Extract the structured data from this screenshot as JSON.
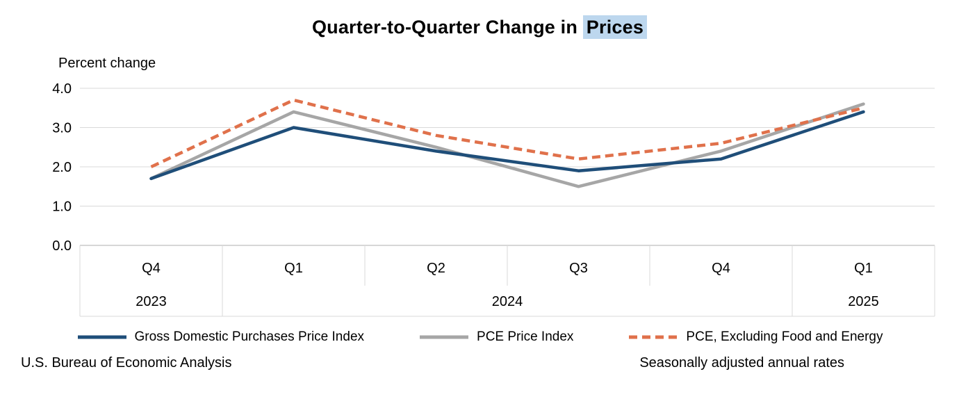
{
  "title": {
    "prefix": "Quarter-to-Quarter Change in ",
    "highlight": "Prices"
  },
  "chart_data": {
    "type": "line",
    "title": "Quarter-to-Quarter Change in Prices",
    "ylabel": "Percent change",
    "ylim": [
      0,
      4.0
    ],
    "yticks": [
      "0.0",
      "1.0",
      "2.0",
      "3.0",
      "4.0"
    ],
    "grid": true,
    "legend_position": "bottom",
    "categories": [
      "Q4",
      "Q1",
      "Q2",
      "Q3",
      "Q4",
      "Q1"
    ],
    "year_groups": [
      {
        "label": "2023",
        "span": 1
      },
      {
        "label": "2024",
        "span": 4
      },
      {
        "label": "2025",
        "span": 1
      }
    ],
    "series": [
      {
        "name": "Gross Domestic Purchases Price Index",
        "color": "#1f4e79",
        "style": "solid",
        "values": [
          1.7,
          3.0,
          2.4,
          1.9,
          2.2,
          3.4
        ]
      },
      {
        "name": "PCE Price Index",
        "color": "#a6a6a6",
        "style": "solid",
        "values": [
          1.7,
          3.4,
          2.5,
          1.5,
          2.4,
          3.6
        ]
      },
      {
        "name": "PCE, Excluding Food and Energy",
        "color": "#e0714b",
        "style": "dashed",
        "dash": "12 7",
        "values": [
          2.0,
          3.7,
          2.8,
          2.2,
          2.6,
          3.5
        ]
      }
    ],
    "colors": {
      "grid": "#d9d9d9",
      "axis": "#bfbfbf",
      "highlight": "#bdd7ee"
    }
  },
  "footer": {
    "left": "U.S. Bureau of Economic Analysis",
    "right": "Seasonally adjusted annual rates"
  }
}
